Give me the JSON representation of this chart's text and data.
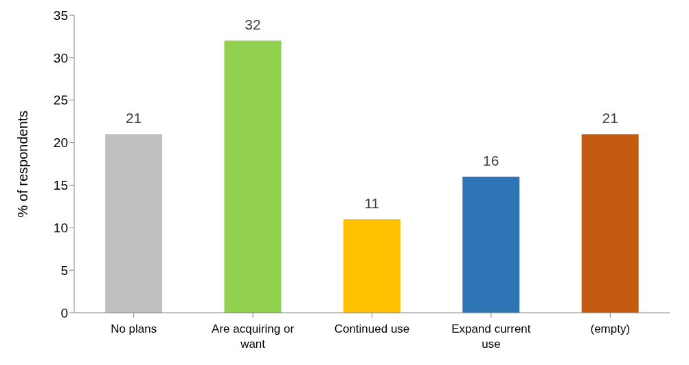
{
  "chart_data": {
    "type": "bar",
    "ylabel": "% of respondents",
    "categories": [
      "No plans",
      "Are acquiring or want",
      "Continued use",
      "Expand current use",
      "(empty)"
    ],
    "values": [
      21,
      32,
      11,
      16,
      21
    ],
    "data_labels": true,
    "colors": [
      "#bfbfbf",
      "#92d050",
      "#ffc000",
      "#2e75b6",
      "#c55a11"
    ],
    "ylim": [
      0,
      35
    ],
    "yticks": [
      0,
      5,
      10,
      15,
      20,
      25,
      30,
      35
    ],
    "grid": false,
    "legend": false
  }
}
